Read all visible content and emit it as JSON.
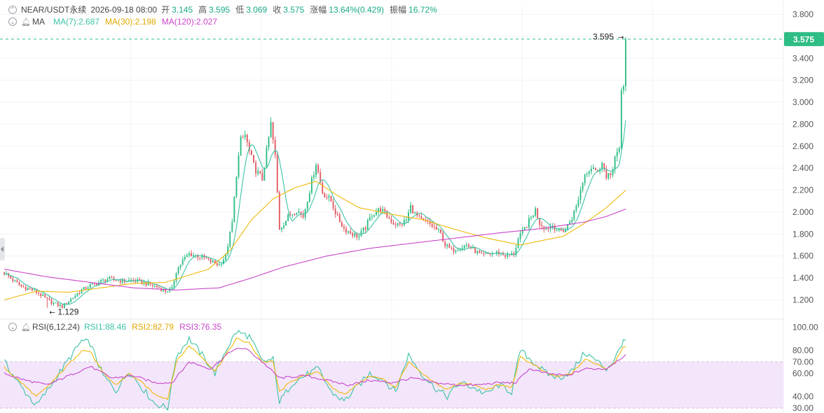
{
  "header": {
    "symbol": "NEAR/USDT永续",
    "datetime": "2026-09-18 08:00",
    "open_label": "开",
    "open": "3.145",
    "high_label": "高",
    "high": "3.595",
    "low_label": "低",
    "low": "3.069",
    "close_label": "收",
    "close": "3.575",
    "change_label": "涨幅",
    "change": "13.64%(0.429)",
    "amplitude_label": "振幅",
    "amplitude": "16.72%"
  },
  "ma_legend": {
    "label": "MA",
    "ma7": "MA(7):2.687",
    "ma30": "MA(30):2.198",
    "ma120": "MA(120):2.027"
  },
  "rsi_legend": {
    "label": "RSI(6,12,24)",
    "rsi1": "RSI1:88.46",
    "rsi2": "RSI2:82.79",
    "rsi3": "RSI3:76.35"
  },
  "colors": {
    "up": "#2ebd85",
    "down": "#e15b64",
    "ma7": "#3cc3a6",
    "ma30": "#f0b90b",
    "ma120": "#c946c9",
    "rsi1": "#3cc3a6",
    "rsi2": "#f0b90b",
    "rsi3": "#c946c9",
    "rsi_band": "#f3e6fb",
    "price_tag": "#2ebd85"
  },
  "chart_data": [
    {
      "type": "candlestick",
      "title": "NEAR/USDT永续",
      "y_ticks": [
        "3.800",
        "3.600",
        "3.400",
        "3.200",
        "3.000",
        "2.800",
        "2.600",
        "2.400",
        "2.200",
        "2.000",
        "1.800",
        "1.600",
        "1.400",
        "1.200"
      ],
      "ylim": [
        1.05,
        3.88
      ],
      "last_price_label": "3.575",
      "last_price": 3.575,
      "annotations": [
        {
          "text": "3.595",
          "value": 3.595,
          "type": "high"
        },
        {
          "text": "1.129",
          "value": 1.129,
          "type": "low"
        }
      ],
      "series": [
        {
          "name": "MA(7)",
          "value": 2.687
        },
        {
          "name": "MA(30)",
          "value": 2.198
        },
        {
          "name": "MA(120)",
          "value": 2.027
        }
      ],
      "close_path": [
        [
          0,
          1.45
        ],
        [
          4,
          1.38
        ],
        [
          8,
          1.32
        ],
        [
          12,
          1.3
        ],
        [
          16,
          1.26
        ],
        [
          20,
          1.2
        ],
        [
          24,
          1.16
        ],
        [
          27,
          1.14
        ],
        [
          30,
          1.19
        ],
        [
          33,
          1.24
        ],
        [
          36,
          1.29
        ],
        [
          40,
          1.33
        ],
        [
          44,
          1.36
        ],
        [
          48,
          1.39
        ],
        [
          52,
          1.38
        ],
        [
          56,
          1.37
        ],
        [
          60,
          1.38
        ],
        [
          64,
          1.36
        ],
        [
          68,
          1.34
        ],
        [
          72,
          1.31
        ],
        [
          75,
          1.28
        ],
        [
          78,
          1.3
        ],
        [
          80,
          1.46
        ],
        [
          83,
          1.56
        ],
        [
          86,
          1.62
        ],
        [
          90,
          1.6
        ],
        [
          93,
          1.58
        ],
        [
          96,
          1.55
        ],
        [
          100,
          1.52
        ],
        [
          103,
          1.6
        ],
        [
          106,
          1.9
        ],
        [
          108,
          2.35
        ],
        [
          110,
          2.65
        ],
        [
          112,
          2.7
        ],
        [
          114,
          2.55
        ],
        [
          116,
          2.42
        ],
        [
          118,
          2.35
        ],
        [
          120,
          2.3
        ],
        [
          122,
          2.55
        ],
        [
          124,
          2.8
        ],
        [
          126,
          2.5
        ],
        [
          128,
          1.85
        ],
        [
          130,
          1.9
        ],
        [
          133,
          1.98
        ],
        [
          136,
          2.02
        ],
        [
          139,
          1.96
        ],
        [
          142,
          2.2
        ],
        [
          145,
          2.45
        ],
        [
          148,
          2.18
        ],
        [
          152,
          2.1
        ],
        [
          155,
          1.95
        ],
        [
          158,
          1.85
        ],
        [
          162,
          1.8
        ],
        [
          165,
          1.78
        ],
        [
          168,
          1.86
        ],
        [
          171,
          1.98
        ],
        [
          175,
          2.03
        ],
        [
          178,
          1.96
        ],
        [
          181,
          1.9
        ],
        [
          184,
          1.88
        ],
        [
          187,
          1.93
        ],
        [
          189,
          2.05
        ],
        [
          191,
          1.98
        ],
        [
          194,
          1.92
        ],
        [
          197,
          1.9
        ],
        [
          200,
          1.86
        ],
        [
          203,
          1.8
        ],
        [
          205,
          1.7
        ],
        [
          208,
          1.65
        ],
        [
          212,
          1.68
        ],
        [
          215,
          1.7
        ],
        [
          218,
          1.66
        ],
        [
          222,
          1.6
        ],
        [
          226,
          1.62
        ],
        [
          230,
          1.63
        ],
        [
          234,
          1.6
        ],
        [
          237,
          1.62
        ],
        [
          239,
          1.75
        ],
        [
          242,
          1.85
        ],
        [
          245,
          1.95
        ],
        [
          247,
          2.02
        ],
        [
          249,
          1.9
        ],
        [
          252,
          1.85
        ],
        [
          255,
          1.88
        ],
        [
          258,
          1.82
        ],
        [
          261,
          1.84
        ],
        [
          264,
          1.95
        ],
        [
          266,
          2.05
        ],
        [
          268,
          2.2
        ],
        [
          270,
          2.35
        ],
        [
          272,
          2.4
        ],
        [
          274,
          2.42
        ],
        [
          276,
          2.35
        ],
        [
          278,
          2.48
        ],
        [
          280,
          2.3
        ],
        [
          282,
          2.34
        ],
        [
          284,
          2.5
        ],
        [
          286,
          2.55
        ],
        [
          287,
          3.1
        ],
        [
          288,
          3.145
        ],
        [
          289,
          3.575
        ]
      ],
      "ma120_path": [
        [
          0,
          1.48
        ],
        [
          20,
          1.41
        ],
        [
          40,
          1.36
        ],
        [
          60,
          1.31
        ],
        [
          80,
          1.29
        ],
        [
          100,
          1.31
        ],
        [
          115,
          1.4
        ],
        [
          130,
          1.5
        ],
        [
          150,
          1.6
        ],
        [
          170,
          1.67
        ],
        [
          200,
          1.74
        ],
        [
          230,
          1.81
        ],
        [
          250,
          1.85
        ],
        [
          270,
          1.91
        ],
        [
          280,
          1.96
        ],
        [
          289,
          2.027
        ]
      ],
      "ma30_path": [
        [
          0,
          1.2
        ],
        [
          15,
          1.28
        ],
        [
          30,
          1.27
        ],
        [
          45,
          1.31
        ],
        [
          60,
          1.35
        ],
        [
          75,
          1.36
        ],
        [
          85,
          1.42
        ],
        [
          95,
          1.48
        ],
        [
          105,
          1.65
        ],
        [
          115,
          1.93
        ],
        [
          125,
          2.12
        ],
        [
          135,
          2.22
        ],
        [
          145,
          2.28
        ],
        [
          155,
          2.15
        ],
        [
          165,
          2.04
        ],
        [
          180,
          1.98
        ],
        [
          195,
          1.93
        ],
        [
          210,
          1.84
        ],
        [
          225,
          1.76
        ],
        [
          240,
          1.7
        ],
        [
          250,
          1.74
        ],
        [
          260,
          1.78
        ],
        [
          270,
          1.9
        ],
        [
          280,
          2.04
        ],
        [
          289,
          2.198
        ]
      ]
    },
    {
      "type": "line",
      "title": "RSI(6,12,24)",
      "y_ticks": [
        "100.00",
        "80.00",
        "70.00",
        "60.00",
        "40.00",
        "30.00"
      ],
      "ylim": [
        27,
        102
      ],
      "band": [
        30,
        70
      ],
      "series": [
        {
          "name": "RSI1",
          "value": 88.46,
          "values_path": [
            [
              0,
              70
            ],
            [
              8,
              48
            ],
            [
              15,
              32
            ],
            [
              20,
              45
            ],
            [
              30,
              72
            ],
            [
              36,
              88
            ],
            [
              40,
              86
            ],
            [
              46,
              58
            ],
            [
              52,
              45
            ],
            [
              58,
              62
            ],
            [
              64,
              48
            ],
            [
              70,
              34
            ],
            [
              76,
              30
            ],
            [
              80,
              75
            ],
            [
              86,
              90
            ],
            [
              92,
              76
            ],
            [
              98,
              60
            ],
            [
              103,
              80
            ],
            [
              108,
              96
            ],
            [
              114,
              92
            ],
            [
              120,
              70
            ],
            [
              125,
              72
            ],
            [
              128,
              35
            ],
            [
              134,
              52
            ],
            [
              140,
              58
            ],
            [
              146,
              64
            ],
            [
              152,
              44
            ],
            [
              158,
              36
            ],
            [
              164,
              48
            ],
            [
              170,
              60
            ],
            [
              176,
              55
            ],
            [
              182,
              44
            ],
            [
              188,
              76
            ],
            [
              194,
              60
            ],
            [
              200,
              48
            ],
            [
              206,
              40
            ],
            [
              212,
              52
            ],
            [
              218,
              48
            ],
            [
              224,
              42
            ],
            [
              230,
              50
            ],
            [
              236,
              44
            ],
            [
              240,
              80
            ],
            [
              246,
              70
            ],
            [
              252,
              60
            ],
            [
              258,
              56
            ],
            [
              264,
              62
            ],
            [
              270,
              78
            ],
            [
              276,
              70
            ],
            [
              280,
              64
            ],
            [
              284,
              72
            ],
            [
              288,
              90
            ],
            [
              289,
              88.46
            ]
          ]
        },
        {
          "name": "RSI2",
          "value": 82.79,
          "values_path": [
            [
              0,
              65
            ],
            [
              8,
              52
            ],
            [
              15,
              40
            ],
            [
              20,
              48
            ],
            [
              30,
              68
            ],
            [
              36,
              80
            ],
            [
              40,
              79
            ],
            [
              46,
              60
            ],
            [
              52,
              50
            ],
            [
              58,
              60
            ],
            [
              64,
              52
            ],
            [
              70,
              42
            ],
            [
              76,
              38
            ],
            [
              80,
              70
            ],
            [
              86,
              84
            ],
            [
              92,
              74
            ],
            [
              98,
              62
            ],
            [
              103,
              76
            ],
            [
              108,
              90
            ],
            [
              114,
              86
            ],
            [
              120,
              70
            ],
            [
              125,
              70
            ],
            [
              128,
              44
            ],
            [
              134,
              54
            ],
            [
              140,
              58
            ],
            [
              146,
              62
            ],
            [
              152,
              48
            ],
            [
              158,
              42
            ],
            [
              164,
              50
            ],
            [
              170,
              58
            ],
            [
              176,
              55
            ],
            [
              182,
              48
            ],
            [
              188,
              70
            ],
            [
              194,
              60
            ],
            [
              200,
              52
            ],
            [
              206,
              46
            ],
            [
              212,
              52
            ],
            [
              218,
              50
            ],
            [
              224,
              46
            ],
            [
              230,
              50
            ],
            [
              236,
              48
            ],
            [
              240,
              74
            ],
            [
              246,
              68
            ],
            [
              252,
              60
            ],
            [
              258,
              57
            ],
            [
              264,
              60
            ],
            [
              270,
              72
            ],
            [
              276,
              68
            ],
            [
              280,
              64
            ],
            [
              284,
              70
            ],
            [
              288,
              84
            ],
            [
              289,
              82.79
            ]
          ]
        },
        {
          "name": "RSI3",
          "value": 76.35,
          "values_path": [
            [
              0,
              60
            ],
            [
              10,
              54
            ],
            [
              20,
              50
            ],
            [
              30,
              58
            ],
            [
              40,
              66
            ],
            [
              50,
              56
            ],
            [
              60,
              58
            ],
            [
              70,
              52
            ],
            [
              78,
              52
            ],
            [
              86,
              70
            ],
            [
              96,
              64
            ],
            [
              106,
              80
            ],
            [
              112,
              82
            ],
            [
              120,
              70
            ],
            [
              128,
              56
            ],
            [
              140,
              58
            ],
            [
              150,
              54
            ],
            [
              160,
              50
            ],
            [
              170,
              54
            ],
            [
              180,
              52
            ],
            [
              190,
              56
            ],
            [
              200,
              52
            ],
            [
              210,
              50
            ],
            [
              220,
              50
            ],
            [
              230,
              52
            ],
            [
              238,
              52
            ],
            [
              244,
              64
            ],
            [
              252,
              60
            ],
            [
              262,
              58
            ],
            [
              270,
              64
            ],
            [
              280,
              64
            ],
            [
              289,
              76.35
            ]
          ]
        }
      ]
    }
  ]
}
